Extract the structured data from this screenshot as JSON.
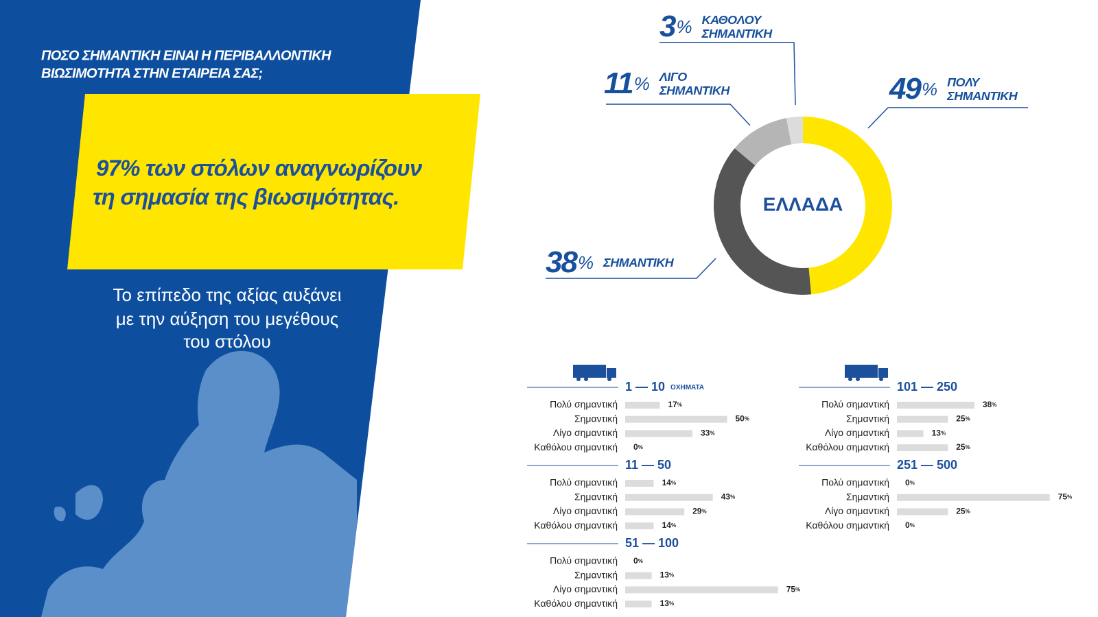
{
  "header": {
    "question_lines": [
      "ΠΟΣΟ ΣΗΜΑΝΤΙΚΗ ΕΙΝΑΙ Η ΠΕΡΙΒΑΛΛΟΝΤΙΚΗ",
      "ΒΙΩΣΙΜΟΤΗΤΑ ΣΤΗΝ ΕΤΑΙΡΕΙΑ ΣΑΣ;"
    ],
    "headline_lines": [
      "97% των στόλων αναγνωρίζουν",
      "τη σημασία της βιωσιμότητας."
    ],
    "note_lines": [
      "Το επίπεδο της αξίας αυξάνει",
      "με την αύξηση του μεγέθους",
      "του στόλου"
    ]
  },
  "chart_data": [
    {
      "type": "pie",
      "center_label": "ΕΛΛΑΔΑ",
      "unit": "%",
      "categories": [
        "ΠΟΛΥ ΣΗΜΑΝΤΙΚΗ",
        "ΣΗΜΑΝΤΙΚΗ",
        "ΛΙΓΟ ΣΗΜΑΝΤΙΚΗ",
        "ΚΑΘΟΛΟΥ ΣΗΜΑΝΤΙΚΗ"
      ],
      "values": [
        49,
        38,
        11,
        3
      ],
      "colors": [
        "#ffe600",
        "#555555",
        "#b5b5b5",
        "#dcdcdc"
      ]
    },
    {
      "type": "bar",
      "title": "1 — 10",
      "subtitle": "ΟΧΗΜΑΤΑ",
      "unit": "%",
      "color": "#dcdcdc",
      "categories": [
        "Πολύ σημαντική",
        "Σημαντική",
        "Λίγο σημαντική",
        "Καθόλου σημαντική"
      ],
      "values": [
        17,
        50,
        33,
        0
      ]
    },
    {
      "type": "bar",
      "title": "11 — 50",
      "unit": "%",
      "color": "#dcdcdc",
      "categories": [
        "Πολύ σημαντική",
        "Σημαντική",
        "Λίγο σημαντική",
        "Καθόλου σημαντική"
      ],
      "values": [
        14,
        43,
        29,
        14
      ]
    },
    {
      "type": "bar",
      "title": "51 — 100",
      "unit": "%",
      "color": "#dcdcdc",
      "categories": [
        "Πολύ σημαντική",
        "Σημαντική",
        "Λίγο σημαντική",
        "Καθόλου σημαντική"
      ],
      "values": [
        0,
        13,
        75,
        13
      ]
    },
    {
      "type": "bar",
      "title": "101 — 250",
      "unit": "%",
      "color": "#dcdcdc",
      "categories": [
        "Πολύ σημαντική",
        "Σημαντική",
        "Λίγο σημαντική",
        "Καθόλου σημαντική"
      ],
      "values": [
        38,
        25,
        13,
        25
      ]
    },
    {
      "type": "bar",
      "title": "251 — 500",
      "unit": "%",
      "color": "#dcdcdc",
      "categories": [
        "Πολύ σημαντική",
        "Σημαντική",
        "Λίγο σημαντική",
        "Καθόλου σημαντική"
      ],
      "values": [
        0,
        75,
        25,
        0
      ]
    }
  ]
}
